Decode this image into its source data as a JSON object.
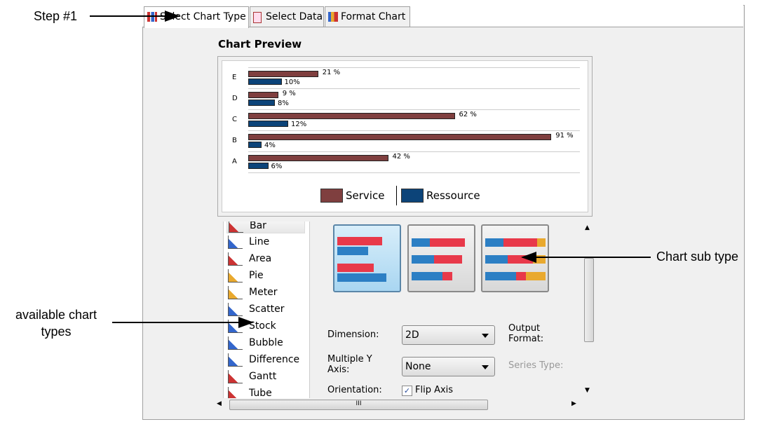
{
  "annotations": {
    "step": "Step #1",
    "subtype": "Chart sub type",
    "types_line1": "available chart",
    "types_line2": "types"
  },
  "tabs": [
    {
      "label": "Select Chart Type",
      "active": true
    },
    {
      "label": "Select Data"
    },
    {
      "label": "Format Chart"
    }
  ],
  "preview": {
    "title": "Chart Preview"
  },
  "chart_data": {
    "type": "bar",
    "orientation": "horizontal",
    "categories": [
      "A",
      "B",
      "C",
      "D",
      "E"
    ],
    "series": [
      {
        "name": "Service",
        "values": [
          42,
          91,
          62,
          9,
          21
        ],
        "labels": [
          "42 %",
          "91 %",
          "62 %",
          "9 %",
          "21 %"
        ],
        "color": "#7f3f3f"
      },
      {
        "name": "Ressource",
        "values": [
          6,
          4,
          12,
          8,
          10
        ],
        "labels": [
          "6%",
          "4%",
          "12%",
          "8%",
          "10%"
        ],
        "color": "#0c4479"
      }
    ],
    "legend": "bottom",
    "grid": true
  },
  "chart_types": [
    "Bar",
    "Line",
    "Area",
    "Pie",
    "Meter",
    "Scatter",
    "Stock",
    "Bubble",
    "Difference",
    "Gantt",
    "Tube"
  ],
  "selected_type": "Bar",
  "options": {
    "dimension_label": "Dimension:",
    "dimension_value": "2D",
    "multi_y_label1": "Multiple Y",
    "multi_y_label2": "Axis:",
    "multi_y_value": "None",
    "orientation_label": "Orientation:",
    "flip_axis_label": "Flip Axis",
    "flip_axis_checked": true,
    "output_label1": "Output",
    "output_label2": "Format:",
    "series_type_label": "Series Type:"
  }
}
